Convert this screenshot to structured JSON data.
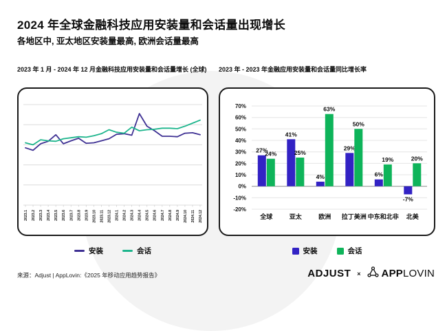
{
  "page": {
    "title": "2024 年全球金融科技应用安装量和会话量出现增长",
    "subtitle": "各地区中, 亚太地区安装量最高, 欧洲会话量最高",
    "source": "来源：Adjust | AppLovin:《2025 年移动应用趋势报告》",
    "brand": {
      "adjust": "ADJUST",
      "cross": "×",
      "applovin_bold": "APP",
      "applovin_light": "LOVIN"
    }
  },
  "colors": {
    "install_line": "#3e3093",
    "session_line": "#1db58c",
    "install_bar": "#3222c4",
    "session_bar": "#0eb45a",
    "panel_border": "#191919",
    "grid": "#dcdcdc",
    "zero_line": "#999999",
    "decorative_circle": "#f3f3f3"
  },
  "chart_data": [
    {
      "type": "line",
      "title": "2023 年 1 月 - 2024 年 12 月金融科技应用安装量和会话量增长 (全球)",
      "x": [
        "2023.1",
        "2023.2",
        "2023.3",
        "2023.4",
        "2023.5",
        "2023.6",
        "2023.7",
        "2023.8",
        "2023.9",
        "2023.10",
        "2023.11",
        "2023.12",
        "2024.1",
        "2024.2",
        "2024.3",
        "2024.4",
        "2024.5",
        "2024.6",
        "2024.7",
        "2024.8",
        "2024.9",
        "2024.10",
        "2024.11",
        "2024.12"
      ],
      "series": [
        {
          "name": "安装",
          "color": "#3e3093",
          "values": [
            57,
            54.5,
            61,
            63.5,
            70,
            61,
            64,
            66.5,
            61.5,
            62,
            64,
            66,
            70.5,
            71,
            69.5,
            91,
            78.5,
            74,
            68.5,
            68.5,
            68,
            71.5,
            72,
            70
          ]
        },
        {
          "name": "会话",
          "color": "#1db58c",
          "values": [
            62,
            60,
            65,
            64,
            63.5,
            66,
            67,
            68,
            67.5,
            69,
            71,
            75,
            72.5,
            71.5,
            77.5,
            74,
            75,
            75.5,
            76.5,
            76.5,
            76,
            78.5,
            81.5,
            84.5
          ]
        }
      ],
      "ylim": [
        0,
        100
      ],
      "y_axis_labeled": false,
      "grid": "horizontal",
      "legend_position": "bottom"
    },
    {
      "type": "bar",
      "title": "2023 年 - 2023 年金融应用安装量和会话量同比增长率",
      "categories": [
        "全球",
        "亚太",
        "欧洲",
        "拉丁美洲",
        "中东和北非",
        "北美"
      ],
      "series": [
        {
          "name": "安装",
          "color": "#3222c4",
          "values": [
            27,
            41,
            4,
            29,
            6,
            -7
          ]
        },
        {
          "name": "会话",
          "color": "#0eb45a",
          "values": [
            24,
            25,
            63,
            50,
            19,
            20
          ]
        }
      ],
      "ylim": [
        -20,
        70
      ],
      "ytick_labels": [
        "70%",
        "60%",
        "50%",
        "40%",
        "30%",
        "20%",
        "10%",
        "0%",
        "-10%",
        "-20%"
      ],
      "value_label_format": "percent",
      "grid": "horizontal",
      "legend_position": "bottom"
    }
  ]
}
